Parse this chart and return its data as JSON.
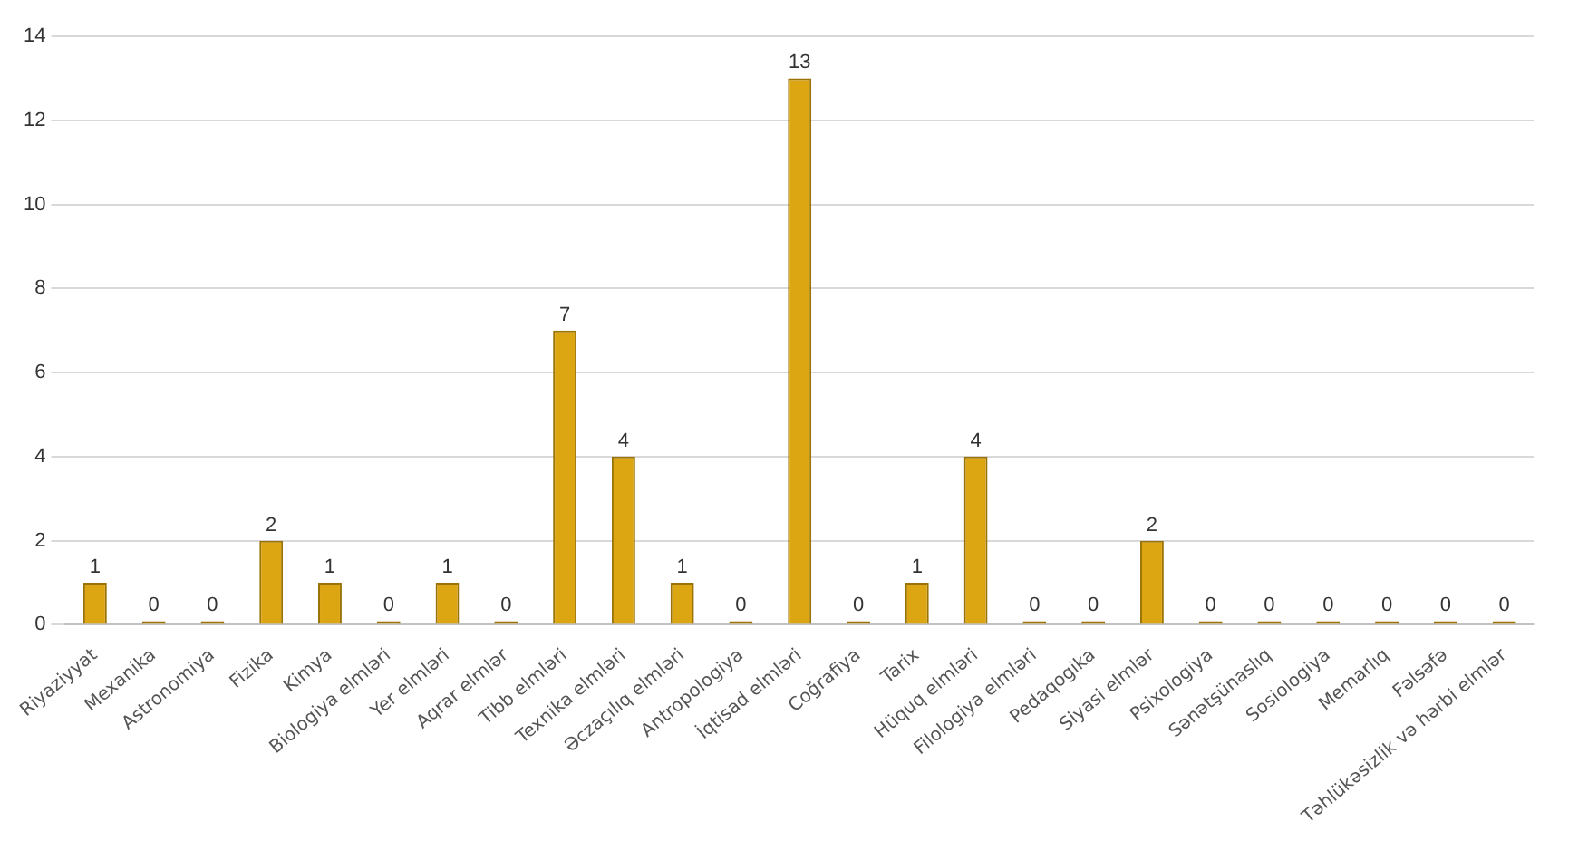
{
  "chart_data": {
    "type": "bar",
    "categories": [
      "Riyaziyyat",
      "Mexanika",
      "Astronomiya",
      "Fizika",
      "Kimya",
      "Biologiya elmləri",
      "Yer elmləri",
      "Aqrar elmlər",
      "Tibb elmləri",
      "Texnika elmləri",
      "Əczaçılıq elmləri",
      "Antropologiya",
      "İqtisad elmləri",
      "Coğrafiya",
      "Tarix",
      "Hüquq elmləri",
      "Filologiya elmləri",
      "Pedaqogika",
      "Siyasi elmlər",
      "Psixologiya",
      "Sənətşünaslıq",
      "Sosiologiya",
      "Memarlıq",
      "Fəlsəfə",
      "Təhlükəsizlik və hərbi elmlər"
    ],
    "values": [
      1,
      0,
      0,
      2,
      1,
      0,
      1,
      0,
      7,
      4,
      1,
      0,
      13,
      0,
      1,
      4,
      0,
      0,
      2,
      0,
      0,
      0,
      0,
      0,
      0
    ],
    "color": "#dca512",
    "ylim": [
      0,
      14
    ],
    "yticks": [
      0,
      2,
      4,
      6,
      8,
      10,
      12,
      14
    ],
    "grid": true,
    "data_labels": true
  }
}
